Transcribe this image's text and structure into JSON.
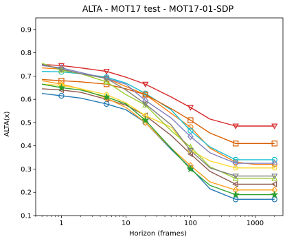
{
  "chart_data": {
    "type": "line",
    "title": "ALTA - MOT17 test - MOT17-01-SDP",
    "xlabel": "Horizon (frames)",
    "ylabel": "ALTA(x)",
    "xscale": "log",
    "xlim": [
      0.4,
      2700
    ],
    "ylim": [
      0.1,
      0.95
    ],
    "grid": false,
    "x_ticks": [
      1,
      10,
      100,
      1000
    ],
    "x_tick_labels": [
      "1",
      "10",
      "100",
      "1000"
    ],
    "y_ticks": [
      0.1,
      0.2,
      0.3,
      0.4,
      0.5,
      0.6,
      0.7,
      0.8,
      0.9
    ],
    "y_tick_labels": [
      "0.1",
      "0.2",
      "0.3",
      "0.4",
      "0.5",
      "0.6",
      "0.7",
      "0.8",
      "0.9"
    ],
    "x": [
      0.5,
      1,
      2,
      5,
      10,
      20,
      50,
      100,
      200,
      500,
      1000,
      2000
    ],
    "series": [
      {
        "color": "#d62728",
        "marker": "v",
        "values": [
          0.75,
          0.745,
          0.735,
          0.72,
          0.695,
          0.665,
          0.61,
          0.565,
          0.515,
          0.485,
          0.485,
          0.485
        ]
      },
      {
        "color": "#ff7f0e",
        "marker": "o",
        "values": [
          0.735,
          0.73,
          0.71,
          0.69,
          0.655,
          0.62,
          0.54,
          0.48,
          0.39,
          0.33,
          0.32,
          0.32
        ]
      },
      {
        "color": "#1f77b4",
        "marker": "o",
        "values": [
          0.625,
          0.615,
          0.605,
          0.58,
          0.555,
          0.5,
          0.385,
          0.305,
          0.215,
          0.17,
          0.17,
          0.17
        ]
      },
      {
        "color": "#17becf",
        "marker": "o",
        "values": [
          0.72,
          0.718,
          0.71,
          0.695,
          0.67,
          0.625,
          0.555,
          0.465,
          0.395,
          0.34,
          0.34,
          0.34
        ]
      },
      {
        "color": "#d95f02",
        "marker": "s",
        "values": [
          0.685,
          0.68,
          0.675,
          0.665,
          0.645,
          0.62,
          0.56,
          0.51,
          0.455,
          0.41,
          0.41,
          0.41
        ]
      },
      {
        "color": "#8c564b",
        "marker": "<",
        "values": [
          0.645,
          0.64,
          0.63,
          0.6,
          0.575,
          0.53,
          0.445,
          0.365,
          0.29,
          0.235,
          0.235,
          0.235
        ]
      },
      {
        "color": "#ff9f1c",
        "marker": "D",
        "values": [
          0.68,
          0.665,
          0.645,
          0.605,
          0.565,
          0.5,
          0.39,
          0.315,
          0.245,
          0.21,
          0.21,
          0.21
        ]
      },
      {
        "color": "#7f7fbf",
        "marker": "D",
        "values": [
          0.745,
          0.735,
          0.715,
          0.69,
          0.665,
          0.595,
          0.52,
          0.44,
          0.37,
          0.325,
          0.325,
          0.325
        ]
      },
      {
        "color": "#ffd92f",
        "marker": "p",
        "values": [
          0.665,
          0.66,
          0.645,
          0.62,
          0.585,
          0.53,
          0.48,
          0.38,
          0.335,
          0.305,
          0.305,
          0.305
        ]
      },
      {
        "color": "#2ca02c",
        "marker": "*",
        "values": [
          0.665,
          0.65,
          0.64,
          0.61,
          0.58,
          0.51,
          0.39,
          0.3,
          0.23,
          0.19,
          0.19,
          0.19
        ]
      },
      {
        "color": "#9acd32",
        "marker": "^",
        "values": [
          0.755,
          0.725,
          0.71,
          0.675,
          0.62,
          0.575,
          0.465,
          0.395,
          0.31,
          0.26,
          0.26,
          0.26
        ]
      },
      {
        "color": "#7f7f7f",
        "marker": "v",
        "values": [
          0.75,
          0.73,
          0.71,
          0.69,
          0.64,
          0.58,
          0.49,
          0.38,
          0.305,
          0.27,
          0.27,
          0.27
        ]
      }
    ]
  }
}
